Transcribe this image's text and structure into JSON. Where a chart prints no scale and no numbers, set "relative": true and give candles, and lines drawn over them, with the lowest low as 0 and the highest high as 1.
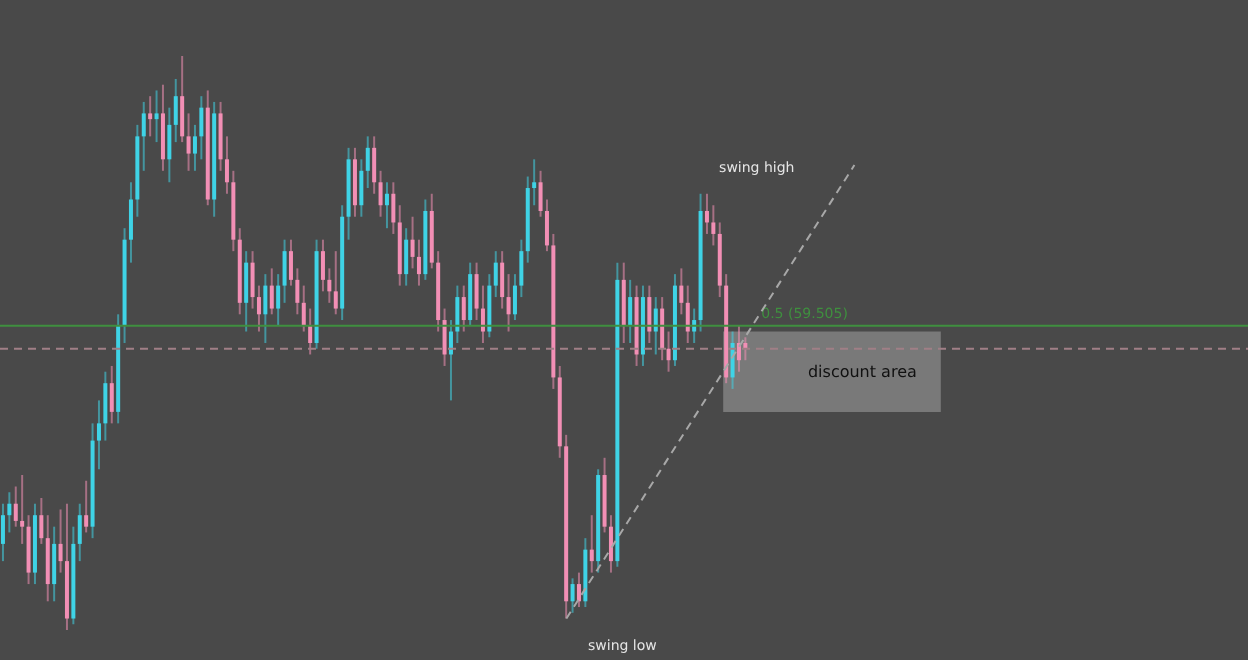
{
  "chart_data": {
    "type": "candlestick",
    "relative": true,
    "tick_labels": false,
    "colors": [
      "#3fd3e6",
      "#3fd3e6",
      "#f28fb5",
      "#f28fb5",
      "#f28fb5",
      "#3fd3e6",
      "#f28fb5",
      "#f28fb5",
      "#3fd3e6",
      "#f28fb5",
      "#f28fb5",
      "#3fd3e6",
      "#3fd3e6",
      "#f28fb5",
      "#3fd3e6",
      "#3fd3e6",
      "#3fd3e6",
      "#f28fb5",
      "#3fd3e6",
      "#3fd3e6",
      "#3fd3e6",
      "#3fd3e6",
      "#3fd3e6",
      "#f28fb5",
      "#3fd3e6",
      "#f28fb5",
      "#3fd3e6",
      "#3fd3e6",
      "#f28fb5",
      "#f28fb5",
      "#3fd3e6",
      "#3fd3e6",
      "#f28fb5",
      "#3fd3e6",
      "#f28fb5",
      "#f28fb5",
      "#f28fb5",
      "#f28fb5",
      "#3fd3e6",
      "#f28fb5",
      "#f28fb5",
      "#3fd3e6",
      "#f28fb5",
      "#3fd3e6",
      "#3fd3e6",
      "#f28fb5",
      "#f28fb5",
      "#f28fb5",
      "#f28fb5",
      "#3fd3e6",
      "#f28fb5",
      "#f28fb5",
      "#f28fb5",
      "#3fd3e6",
      "#3fd3e6",
      "#f28fb5",
      "#3fd3e6",
      "#3fd3e6",
      "#f28fb5",
      "#f28fb5",
      "#3fd3e6",
      "#f28fb5",
      "#f28fb5",
      "#3fd3e6",
      "#f28fb5",
      "#f28fb5",
      "#3fd3e6",
      "#f28fb5",
      "#f28fb5",
      "#f28fb5",
      "#3fd3e6",
      "#3fd3e6",
      "#f28fb5",
      "#3fd3e6",
      "#f28fb5",
      "#f28fb5",
      "#3fd3e6",
      "#3fd3e6",
      "#f28fb5",
      "#f28fb5",
      "#3fd3e6",
      "#3fd3e6",
      "#3fd3e6",
      "#3fd3e6",
      "#f28fb5",
      "#f28fb5",
      "#f28fb5",
      "#f28fb5",
      "#f28fb5",
      "#3fd3e6",
      "#f28fb5",
      "#3fd3e6",
      "#f28fb5",
      "#3fd3e6",
      "#f28fb5",
      "#f28fb5",
      "#3fd3e6",
      "#f28fb5",
      "#3fd3e6",
      "#f28fb5",
      "#3fd3e6",
      "#f28fb5",
      "#3fd3e6",
      "#f28fb5",
      "#f28fb5",
      "#3fd3e6",
      "#f28fb5",
      "#f28fb5",
      "#3fd3e6",
      "#3fd3e6",
      "#f28fb5",
      "#f28fb5",
      "#f28fb5",
      "#f28fb5",
      "#3fd3e6",
      "#f28fb5",
      "#f28fb5",
      null,
      null,
      null,
      null,
      null,
      null,
      null,
      null,
      null,
      null,
      null,
      null,
      null,
      null,
      null,
      null,
      null,
      null,
      null,
      null,
      null,
      null,
      null,
      null,
      null,
      null,
      null,
      null,
      null,
      null,
      null,
      null,
      null,
      null,
      null,
      null,
      null,
      null,
      null,
      null,
      null,
      null,
      null,
      null,
      null,
      null,
      null,
      null,
      null,
      null,
      null,
      null,
      null,
      null,
      null,
      null,
      null,
      null,
      null,
      null,
      null,
      null,
      null,
      null,
      null,
      null,
      null,
      null,
      null,
      null,
      null,
      null,
      null,
      null,
      null,
      null,
      null,
      null
    ],
    "categories": [
      null,
      null,
      null,
      null,
      null,
      null,
      null,
      null,
      null,
      null,
      null,
      null,
      null,
      null,
      null,
      null,
      null,
      null,
      null,
      null,
      null,
      null,
      null,
      null,
      null,
      null,
      null,
      null,
      null,
      null,
      null,
      null,
      null,
      null,
      null,
      null,
      null,
      null,
      null,
      null,
      null,
      null,
      null,
      null,
      null,
      null,
      null,
      null,
      null,
      null,
      null,
      null,
      null,
      null,
      null,
      null,
      null,
      null,
      null,
      null,
      null,
      null,
      null,
      null,
      null,
      null,
      null,
      null,
      null,
      null,
      null,
      null,
      null,
      null,
      null,
      null,
      null,
      null,
      null,
      null,
      null,
      null,
      null,
      null,
      null,
      null,
      null,
      null,
      null,
      null,
      null,
      null,
      null,
      null,
      null,
      null,
      null,
      null,
      null,
      null,
      null,
      null,
      null,
      null,
      null,
      null,
      null,
      null,
      null,
      null,
      null,
      null,
      null,
      null,
      null,
      null,
      null,
      null,
      null,
      null,
      null,
      null,
      null,
      null,
      null,
      null,
      null,
      null,
      null,
      null,
      null,
      null,
      null,
      null,
      null,
      null,
      null,
      null,
      null,
      null,
      null,
      null,
      null,
      null,
      null,
      null,
      null,
      null,
      null,
      null,
      null,
      null,
      null,
      null,
      null,
      null,
      null,
      null,
      null,
      null,
      null,
      null,
      null,
      null,
      null,
      null,
      null,
      null,
      null,
      null,
      null,
      null,
      null,
      null,
      null,
      null,
      null,
      null,
      null,
      null,
      null,
      null,
      null,
      null,
      null,
      null,
      null,
      null,
      null,
      null,
      null,
      null,
      null,
      null,
      null
    ],
    "ohlc": [
      [
        0.15,
        0.22,
        0.12,
        0.2
      ],
      [
        0.2,
        0.24,
        0.17,
        0.22
      ],
      [
        0.22,
        0.25,
        0.18,
        0.19
      ],
      [
        0.19,
        0.27,
        0.15,
        0.18
      ],
      [
        0.18,
        0.2,
        0.08,
        0.1
      ],
      [
        0.1,
        0.22,
        0.08,
        0.2
      ],
      [
        0.2,
        0.23,
        0.15,
        0.16
      ],
      [
        0.16,
        0.2,
        0.05,
        0.08
      ],
      [
        0.08,
        0.18,
        0.05,
        0.15
      ],
      [
        0.15,
        0.21,
        0.1,
        0.12
      ],
      [
        0.12,
        0.22,
        0.0,
        0.02
      ],
      [
        0.02,
        0.18,
        0.01,
        0.15
      ],
      [
        0.15,
        0.22,
        0.12,
        0.2
      ],
      [
        0.2,
        0.26,
        0.17,
        0.18
      ],
      [
        0.18,
        0.36,
        0.16,
        0.33
      ],
      [
        0.33,
        0.4,
        0.28,
        0.36
      ],
      [
        0.36,
        0.45,
        0.33,
        0.43
      ],
      [
        0.43,
        0.46,
        0.36,
        0.38
      ],
      [
        0.38,
        0.55,
        0.36,
        0.53
      ],
      [
        0.53,
        0.7,
        0.5,
        0.68
      ],
      [
        0.68,
        0.78,
        0.64,
        0.75
      ],
      [
        0.75,
        0.88,
        0.72,
        0.86
      ],
      [
        0.86,
        0.92,
        0.8,
        0.9
      ],
      [
        0.9,
        0.93,
        0.86,
        0.89
      ],
      [
        0.89,
        0.94,
        0.85,
        0.9
      ],
      [
        0.9,
        0.95,
        0.8,
        0.82
      ],
      [
        0.82,
        0.91,
        0.78,
        0.88
      ],
      [
        0.88,
        0.96,
        0.85,
        0.93
      ],
      [
        0.93,
        1.0,
        0.85,
        0.86
      ],
      [
        0.86,
        0.9,
        0.8,
        0.83
      ],
      [
        0.83,
        0.88,
        0.8,
        0.86
      ],
      [
        0.86,
        0.93,
        0.82,
        0.91
      ],
      [
        0.91,
        0.94,
        0.74,
        0.75
      ],
      [
        0.75,
        0.92,
        0.72,
        0.9
      ],
      [
        0.9,
        0.92,
        0.8,
        0.82
      ],
      [
        0.82,
        0.86,
        0.76,
        0.78
      ],
      [
        0.78,
        0.8,
        0.66,
        0.68
      ],
      [
        0.68,
        0.7,
        0.55,
        0.57
      ],
      [
        0.57,
        0.66,
        0.52,
        0.64
      ],
      [
        0.64,
        0.66,
        0.56,
        0.58
      ],
      [
        0.58,
        0.6,
        0.52,
        0.55
      ],
      [
        0.55,
        0.62,
        0.5,
        0.6
      ],
      [
        0.6,
        0.63,
        0.55,
        0.56
      ],
      [
        0.56,
        0.62,
        0.53,
        0.6
      ],
      [
        0.6,
        0.68,
        0.57,
        0.66
      ],
      [
        0.66,
        0.68,
        0.6,
        0.61
      ],
      [
        0.61,
        0.63,
        0.55,
        0.57
      ],
      [
        0.57,
        0.6,
        0.52,
        0.53
      ],
      [
        0.53,
        0.56,
        0.48,
        0.5
      ],
      [
        0.5,
        0.68,
        0.49,
        0.66
      ],
      [
        0.66,
        0.68,
        0.59,
        0.61
      ],
      [
        0.61,
        0.63,
        0.57,
        0.59
      ],
      [
        0.59,
        0.66,
        0.55,
        0.56
      ],
      [
        0.56,
        0.74,
        0.54,
        0.72
      ],
      [
        0.72,
        0.84,
        0.68,
        0.82
      ],
      [
        0.82,
        0.84,
        0.72,
        0.74
      ],
      [
        0.74,
        0.82,
        0.72,
        0.8
      ],
      [
        0.8,
        0.86,
        0.77,
        0.84
      ],
      [
        0.84,
        0.86,
        0.76,
        0.78
      ],
      [
        0.78,
        0.8,
        0.72,
        0.74
      ],
      [
        0.74,
        0.78,
        0.7,
        0.76
      ],
      [
        0.76,
        0.78,
        0.69,
        0.71
      ],
      [
        0.71,
        0.74,
        0.6,
        0.62
      ],
      [
        0.62,
        0.7,
        0.6,
        0.68
      ],
      [
        0.68,
        0.72,
        0.63,
        0.65
      ],
      [
        0.65,
        0.68,
        0.6,
        0.62
      ],
      [
        0.62,
        0.75,
        0.61,
        0.73
      ],
      [
        0.73,
        0.76,
        0.63,
        0.64
      ],
      [
        0.64,
        0.66,
        0.52,
        0.54
      ],
      [
        0.54,
        0.56,
        0.46,
        0.48
      ],
      [
        0.48,
        0.54,
        0.4,
        0.52
      ],
      [
        0.52,
        0.6,
        0.5,
        0.58
      ],
      [
        0.58,
        0.6,
        0.52,
        0.54
      ],
      [
        0.54,
        0.64,
        0.53,
        0.62
      ],
      [
        0.62,
        0.64,
        0.54,
        0.56
      ],
      [
        0.56,
        0.6,
        0.5,
        0.52
      ],
      [
        0.52,
        0.62,
        0.51,
        0.6
      ],
      [
        0.6,
        0.66,
        0.58,
        0.64
      ],
      [
        0.64,
        0.66,
        0.56,
        0.58
      ],
      [
        0.58,
        0.62,
        0.52,
        0.55
      ],
      [
        0.55,
        0.62,
        0.54,
        0.6
      ],
      [
        0.6,
        0.68,
        0.58,
        0.66
      ],
      [
        0.66,
        0.79,
        0.64,
        0.77
      ],
      [
        0.77,
        0.82,
        0.74,
        0.78
      ],
      [
        0.78,
        0.8,
        0.72,
        0.73
      ],
      [
        0.73,
        0.75,
        0.66,
        0.67
      ],
      [
        0.67,
        0.69,
        0.42,
        0.44
      ],
      [
        0.44,
        0.46,
        0.3,
        0.32
      ],
      [
        0.32,
        0.34,
        0.02,
        0.05
      ],
      [
        0.05,
        0.09,
        0.03,
        0.08
      ],
      [
        0.08,
        0.1,
        0.04,
        0.05
      ],
      [
        0.05,
        0.16,
        0.04,
        0.14
      ],
      [
        0.14,
        0.2,
        0.1,
        0.12
      ],
      [
        0.12,
        0.28,
        0.1,
        0.27
      ],
      [
        0.27,
        0.3,
        0.17,
        0.18
      ],
      [
        0.18,
        0.2,
        0.1,
        0.12
      ],
      [
        0.12,
        0.64,
        0.11,
        0.61
      ],
      [
        0.61,
        0.64,
        0.5,
        0.53
      ],
      [
        0.53,
        0.61,
        0.5,
        0.58
      ],
      [
        0.58,
        0.6,
        0.46,
        0.48
      ],
      [
        0.48,
        0.6,
        0.46,
        0.58
      ],
      [
        0.58,
        0.6,
        0.5,
        0.52
      ],
      [
        0.52,
        0.58,
        0.48,
        0.56
      ],
      [
        0.56,
        0.58,
        0.47,
        0.49
      ],
      [
        0.49,
        0.52,
        0.45,
        0.47
      ],
      [
        0.47,
        0.62,
        0.46,
        0.6
      ],
      [
        0.6,
        0.63,
        0.55,
        0.57
      ],
      [
        0.57,
        0.6,
        0.5,
        0.52
      ],
      [
        0.52,
        0.56,
        0.5,
        0.54
      ],
      [
        0.54,
        0.76,
        0.52,
        0.73
      ],
      [
        0.73,
        0.76,
        0.69,
        0.71
      ],
      [
        0.71,
        0.74,
        0.67,
        0.69
      ],
      [
        0.69,
        0.71,
        0.58,
        0.6
      ],
      [
        0.6,
        0.62,
        0.43,
        0.44
      ],
      [
        0.44,
        0.52,
        0.42,
        0.5
      ],
      [
        0.5,
        0.53,
        0.45,
        0.47
      ],
      [
        0.5,
        0.51,
        0.47,
        0.49
      ],
      null,
      null,
      null,
      null,
      null,
      null,
      null,
      null,
      null,
      null,
      null,
      null,
      null,
      null,
      null,
      null,
      null,
      null,
      null,
      null,
      null,
      null,
      null,
      null,
      null,
      null,
      null,
      null,
      null,
      null,
      null,
      null,
      null,
      null,
      null,
      null,
      null,
      null,
      null,
      null,
      null,
      null,
      null,
      null,
      null,
      null,
      null,
      null,
      null,
      null,
      null,
      null,
      null,
      null,
      null,
      null,
      null,
      null,
      null,
      null,
      null,
      null,
      null,
      null,
      null,
      null,
      null,
      null,
      null,
      null,
      null,
      null,
      null,
      null,
      null,
      null,
      null,
      null
    ],
    "ref_lines": [
      {
        "axis": "y",
        "value": 0.49,
        "color": "#a07f86",
        "line_style": "dashed"
      },
      {
        "axis": "y",
        "value": 0.53,
        "color": "#3f8f3f",
        "line_style": "solid",
        "label": "0.5 (59.505)"
      }
    ],
    "bands": [
      {
        "axis": "y",
        "from": 0.38,
        "to": 0.52,
        "color": "#8a8a8a",
        "label": "discount area"
      }
    ],
    "annotations": [
      "swing high",
      "swing low"
    ],
    "series": [
      {
        "type": "line",
        "color": "#a8a8a8",
        "line_style": "dashed",
        "values": [
          null,
          null,
          null,
          null,
          null,
          null,
          null,
          null,
          null,
          null,
          null,
          null,
          null,
          null,
          null,
          null,
          null,
          null,
          null,
          null,
          null,
          null,
          null,
          null,
          null,
          null,
          null,
          null,
          null,
          null,
          null,
          null,
          null,
          null,
          null,
          null,
          null,
          null,
          null,
          null,
          null,
          null,
          null,
          null,
          null,
          null,
          null,
          null,
          null,
          null,
          null,
          null,
          null,
          null,
          null,
          null,
          null,
          null,
          null,
          null,
          null,
          null,
          null,
          null,
          null,
          null,
          null,
          null,
          null,
          null,
          null,
          null,
          null,
          null,
          null,
          null,
          null,
          null,
          null,
          null,
          null,
          null,
          null,
          null,
          null,
          null,
          null,
          null,
          0.02,
          null,
          null,
          null,
          null,
          null,
          null,
          null,
          null,
          null,
          null,
          null,
          null,
          null,
          null,
          null,
          null,
          null,
          null,
          null,
          null,
          null,
          null,
          null,
          null,
          null,
          null,
          null,
          null,
          null,
          null,
          null,
          null,
          null,
          null,
          null,
          null,
          null,
          null,
          null,
          null,
          null,
          null,
          null,
          null,
          0.81,
          null,
          null,
          null,
          null,
          null,
          null,
          null,
          null,
          null,
          null,
          null,
          null,
          null,
          null,
          null,
          null,
          null,
          null,
          null,
          null,
          null,
          null,
          null,
          null,
          null,
          null,
          null,
          null,
          null,
          null,
          null,
          null,
          null,
          null,
          null,
          null,
          null,
          null,
          null,
          null,
          null,
          null,
          null,
          null,
          null,
          null,
          null,
          null,
          null,
          null,
          null,
          null,
          null,
          null,
          null,
          null,
          null,
          null,
          null,
          null,
          null
        ]
      }
    ]
  }
}
